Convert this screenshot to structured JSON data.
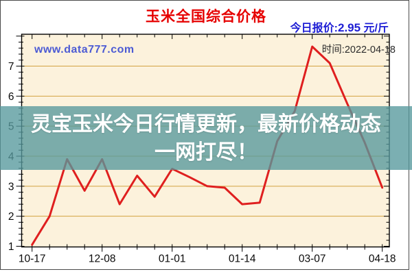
{
  "header": {
    "title": "玉米全国综合价格",
    "quote_label": "今日报价:",
    "quote_value": "2.95",
    "quote_unit": " 元/斤"
  },
  "overlay": {
    "watermark": "www.data777.com",
    "time_label": "时间:2022-04-18",
    "banner_line1": "灵宝玉米今日行情更新，最新价格动态",
    "banner_line2": "一网打尽！"
  },
  "colors": {
    "title_red": "#e60000",
    "quote_blue": "#1d1dd4",
    "watermark_blue": "#4c5bd4",
    "time_gray": "#2b2b2b",
    "banner_teal": "rgba(86,152,156,0.78)",
    "line_red": "#df1f1f",
    "plot_bg": "#fcf2dc",
    "grid_gold": "#d2a23f",
    "axis_black": "#000000"
  },
  "chart_data": {
    "type": "line",
    "title": "玉米全国综合价格",
    "unit": "元/斤",
    "x_tick_labels": [
      "10-17",
      "12-08",
      "01-01",
      "01-14",
      "03-07",
      "04-18"
    ],
    "x_tick_label_indices": [
      0,
      4,
      8,
      12,
      16,
      20
    ],
    "values": [
      1.05,
      2.0,
      3.9,
      2.85,
      3.9,
      2.4,
      3.35,
      2.65,
      3.58,
      3.3,
      3.0,
      2.95,
      2.4,
      2.45,
      4.5,
      5.5,
      7.65,
      7.1,
      5.75,
      4.45,
      2.95
    ],
    "y_ticks": [
      1,
      2,
      3,
      4,
      5,
      6,
      7
    ],
    "ylim": [
      1,
      8.05
    ],
    "grid": "horizontal",
    "legend": "none",
    "latest_value": 2.95,
    "latest_date": "2022-04-18"
  }
}
